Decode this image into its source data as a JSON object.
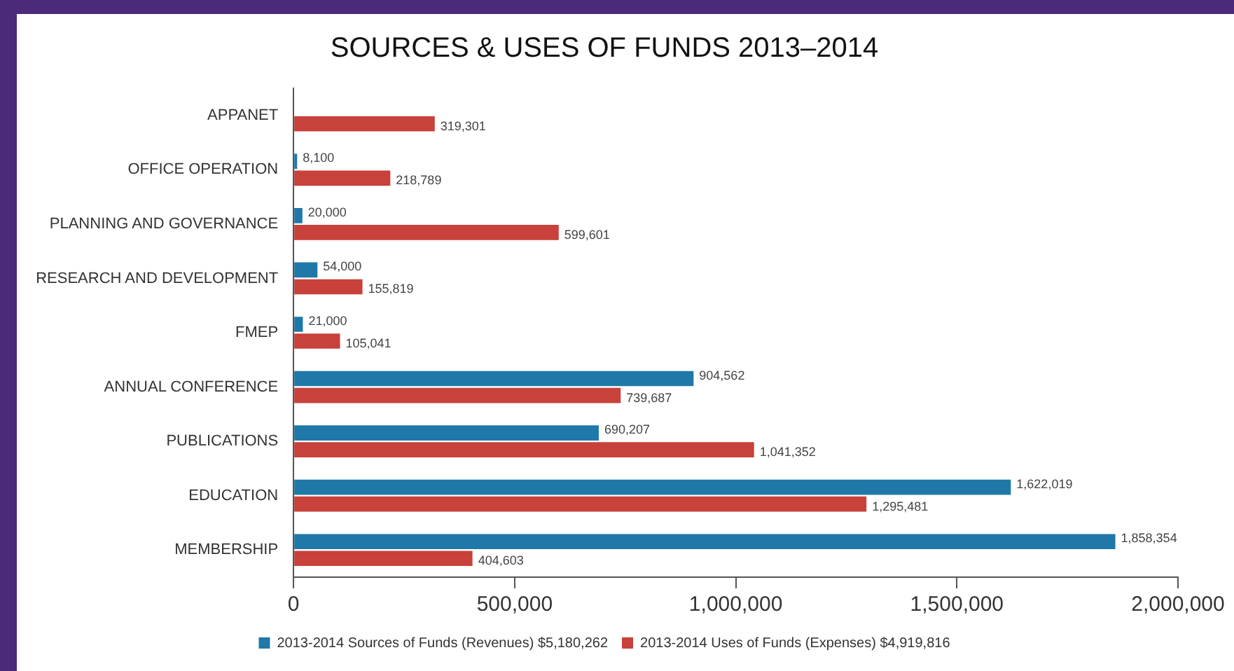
{
  "chart_data": {
    "type": "bar",
    "orientation": "horizontal",
    "title": "SOURCES & USES OF FUNDS 2013–2014",
    "categories": [
      "APPANET",
      "OFFICE OPERATION",
      "PLANNING AND GOVERNANCE",
      "RESEARCH AND DEVELOPMENT",
      "FMEP",
      "ANNUAL CONFERENCE",
      "PUBLICATIONS",
      "EDUCATION",
      "MEMBERSHIP"
    ],
    "series": [
      {
        "name": "2013-2014 Sources of Funds (Revenues) $5,180,262",
        "color": "#1f78a8",
        "values": [
          null,
          8100,
          20000,
          54000,
          21000,
          904562,
          690207,
          1622019,
          1858354
        ],
        "value_labels": [
          null,
          "8,100",
          "20,000",
          "54,000",
          "21,000",
          "904,562",
          "690,207",
          "1,622,019",
          "1,858,354"
        ]
      },
      {
        "name": "2013-2014 Uses of Funds (Expenses) $4,919,816",
        "color": "#c8413a",
        "values": [
          319301,
          218789,
          599601,
          155819,
          105041,
          739687,
          1041352,
          1295481,
          404603
        ],
        "value_labels": [
          "319,301",
          "218,789",
          "599,601",
          "155,819",
          "105,041",
          "739,687",
          "1,041,352",
          "1,295,481",
          "404,603"
        ]
      }
    ],
    "xlim": [
      0,
      2000000
    ],
    "xticks": [
      {
        "value": 0,
        "label": "0"
      },
      {
        "value": 500000,
        "label": "500,000"
      },
      {
        "value": 1000000,
        "label": "1,000,000"
      },
      {
        "value": 1500000,
        "label": "1,500,000"
      },
      {
        "value": 2000000,
        "label": "2,000,000"
      }
    ],
    "grid": false,
    "legend": "bottom"
  }
}
